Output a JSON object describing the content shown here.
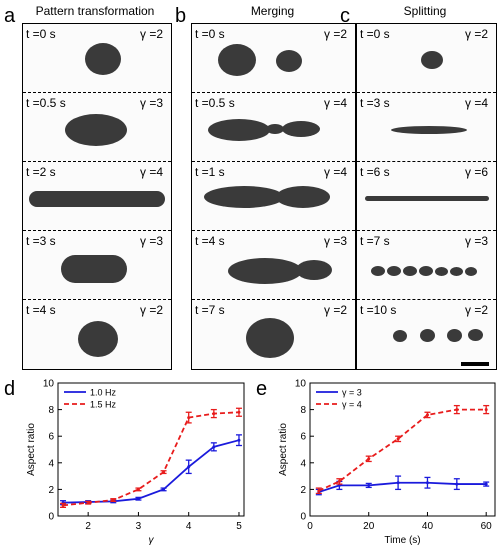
{
  "panels": {
    "a": {
      "label": "a",
      "title": "Pattern transformation",
      "frames": [
        {
          "t": "t =0 s",
          "g": "γ =2"
        },
        {
          "t": "t =0.5 s",
          "g": "γ =3"
        },
        {
          "t": "t =2 s",
          "g": "γ =4"
        },
        {
          "t": "t =3 s",
          "g": "γ =3"
        },
        {
          "t": "t =4 s",
          "g": "γ =2"
        }
      ]
    },
    "b": {
      "label": "b",
      "title": "Merging",
      "frames": [
        {
          "t": "t =0 s",
          "g": "γ =2"
        },
        {
          "t": "t =0.5 s",
          "g": "γ =4"
        },
        {
          "t": "t =1 s",
          "g": "γ =4"
        },
        {
          "t": "t =4 s",
          "g": "γ =3"
        },
        {
          "t": "t =7 s",
          "g": "γ =2"
        }
      ]
    },
    "c": {
      "label": "c",
      "title": "Splitting",
      "frames": [
        {
          "t": "t =0 s",
          "g": "γ =2"
        },
        {
          "t": "t =3 s",
          "g": "γ =4"
        },
        {
          "t": "t =6 s",
          "g": "γ =6"
        },
        {
          "t": "t =7 s",
          "g": "γ =3"
        },
        {
          "t": "t =10 s",
          "g": "γ =2"
        }
      ]
    },
    "d": {
      "label": "d"
    },
    "e": {
      "label": "e"
    }
  },
  "chart_data": [
    {
      "type": "line",
      "panel": "d",
      "xlabel": "γ",
      "ylabel": "Aspect ratio",
      "xlim": [
        1.4,
        5.1
      ],
      "ylim": [
        0,
        10
      ],
      "xticks": [
        2,
        3,
        4,
        5
      ],
      "yticks": [
        0,
        2,
        4,
        6,
        8,
        10
      ],
      "legend_position": "top-left",
      "series": [
        {
          "name": "1.0 Hz",
          "color": "#1a1adc",
          "dash": "",
          "x": [
            1.5,
            2,
            2.5,
            3,
            3.5,
            4,
            4.5,
            5
          ],
          "y": [
            1.0,
            1.05,
            1.1,
            1.3,
            2.0,
            3.7,
            5.2,
            5.7
          ],
          "err": [
            0.15,
            0.1,
            0.1,
            0.1,
            0.1,
            0.5,
            0.3,
            0.4
          ]
        },
        {
          "name": "1.5 Hz",
          "color": "#e81c1c",
          "dash": "5,3",
          "x": [
            1.5,
            2,
            2.5,
            3,
            3.5,
            4,
            4.5,
            5
          ],
          "y": [
            0.8,
            1.0,
            1.2,
            2.0,
            3.3,
            7.4,
            7.7,
            7.8
          ],
          "err": [
            0.15,
            0.1,
            0.1,
            0.1,
            0.1,
            0.4,
            0.3,
            0.3
          ]
        }
      ]
    },
    {
      "type": "line",
      "panel": "e",
      "xlabel": "Time (s)",
      "ylabel": "Aspect ratio",
      "xlim": [
        0,
        63
      ],
      "ylim": [
        0,
        10
      ],
      "xticks": [
        0,
        20,
        40,
        60
      ],
      "yticks": [
        0,
        2,
        4,
        6,
        8,
        10
      ],
      "legend_position": "top-left",
      "series": [
        {
          "name": "γ = 3",
          "color": "#1a1adc",
          "dash": "",
          "x": [
            3,
            10,
            20,
            30,
            40,
            50,
            60
          ],
          "y": [
            1.8,
            2.3,
            2.3,
            2.5,
            2.5,
            2.4,
            2.4
          ],
          "err": [
            0.2,
            0.3,
            0.15,
            0.5,
            0.4,
            0.4,
            0.15
          ]
        },
        {
          "name": "γ = 4",
          "color": "#e81c1c",
          "dash": "5,3",
          "x": [
            3,
            10,
            20,
            30,
            40,
            50,
            60
          ],
          "y": [
            1.9,
            2.6,
            4.3,
            5.8,
            7.6,
            8.0,
            8.0
          ],
          "err": [
            0.2,
            0.2,
            0.2,
            0.2,
            0.2,
            0.3,
            0.3
          ]
        }
      ]
    }
  ]
}
